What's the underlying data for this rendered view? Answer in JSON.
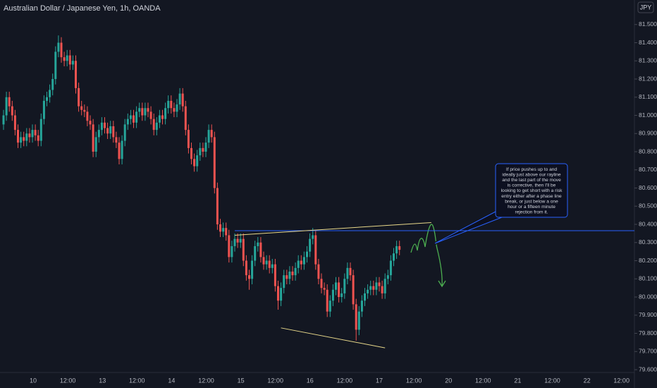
{
  "chart_data": {
    "type": "candlestick",
    "title": "Australian Dollar / Japanese Yen, 1h, OANDA",
    "currency": "JPY",
    "up_color": "#26a69a",
    "down_color": "#ef5350",
    "grid": false,
    "ylim": [
      79.538,
      81.635
    ],
    "yticks": [
      {
        "value": 79.6,
        "label": "79.600"
      },
      {
        "value": 79.7,
        "label": "79.700"
      },
      {
        "value": 79.8,
        "label": "79.800"
      },
      {
        "value": 79.9,
        "label": "79.900"
      },
      {
        "value": 80.0,
        "label": "80.000"
      },
      {
        "value": 80.1,
        "label": "80.100"
      },
      {
        "value": 80.2,
        "label": "80.200"
      },
      {
        "value": 80.3,
        "label": "80.300"
      },
      {
        "value": 80.4,
        "label": "80.400"
      },
      {
        "value": 80.5,
        "label": "80.500"
      },
      {
        "value": 80.6,
        "label": "80.600"
      },
      {
        "value": 80.7,
        "label": "80.700"
      },
      {
        "value": 80.8,
        "label": "80.800"
      },
      {
        "value": 80.9,
        "label": "80.900"
      },
      {
        "value": 81.0,
        "label": "81.000"
      },
      {
        "value": 81.1,
        "label": "81.100"
      },
      {
        "value": 81.2,
        "label": "81.200"
      },
      {
        "value": 81.3,
        "label": "81.300"
      },
      {
        "value": 81.4,
        "label": "81.400"
      },
      {
        "value": 81.5,
        "label": "81.500"
      }
    ],
    "x_labels": [
      "10",
      "12:00",
      "13",
      "12:00",
      "14",
      "12:00",
      "15",
      "12:00",
      "16",
      "12:00",
      "17",
      "12:00",
      "20",
      "12:00",
      "21",
      "12:00",
      "22",
      "12:00"
    ],
    "open": [
      80.95,
      81.0,
      81.1,
      81.05,
      81.0,
      80.92,
      80.85,
      80.88,
      80.86,
      80.9,
      80.88,
      80.92,
      80.89,
      80.86,
      80.98,
      81.08,
      81.1,
      81.14,
      81.2,
      81.35,
      81.4,
      81.32,
      81.3,
      81.33,
      81.28,
      81.3,
      81.15,
      81.05,
      81.03,
      81.02,
      80.97,
      80.95,
      80.8,
      80.88,
      80.92,
      80.96,
      80.93,
      80.9,
      80.94,
      80.88,
      80.85,
      80.76,
      80.86,
      80.95,
      80.98,
      81.0,
      80.96,
      81.02,
      81.04,
      81.0,
      81.04,
      81.02,
      80.98,
      80.92,
      80.96,
      81.0,
      80.98,
      81.04,
      81.08,
      81.04,
      81.02,
      81.06,
      81.12,
      81.05,
      80.92,
      80.82,
      80.76,
      80.72,
      80.78,
      80.82,
      80.8,
      80.85,
      80.92,
      80.88,
      80.6,
      80.4,
      80.36,
      80.38,
      80.34,
      80.22,
      80.28,
      80.32,
      80.3,
      80.32,
      80.2,
      80.12,
      80.1,
      80.2,
      80.28,
      80.3,
      80.22,
      80.18,
      80.2,
      80.16,
      80.18,
      80.06,
      79.98,
      80.05,
      80.12,
      80.1,
      80.14,
      80.12,
      80.16,
      80.2,
      80.18,
      80.22,
      80.25,
      80.32,
      80.34,
      80.18,
      80.1,
      80.05,
      80.04,
      79.92,
      79.98,
      80.04,
      80.08,
      80.0,
      80.02,
      80.1,
      80.16,
      80.12,
      79.96,
      79.82,
      79.92,
      79.98,
      80.02,
      80.04,
      80.06,
      80.04,
      80.08,
      80.06,
      80.02,
      80.1,
      80.12,
      80.2,
      80.24,
      80.28
    ],
    "high": [
      81.03,
      81.13,
      81.13,
      81.08,
      81.03,
      80.95,
      80.91,
      80.91,
      80.93,
      80.93,
      80.95,
      80.95,
      80.92,
      81.01,
      81.11,
      81.13,
      81.17,
      81.23,
      81.38,
      81.44,
      81.43,
      81.35,
      81.36,
      81.36,
      81.33,
      81.33,
      81.18,
      81.08,
      81.06,
      81.05,
      81.0,
      80.98,
      80.91,
      80.95,
      80.99,
      80.99,
      80.96,
      80.97,
      80.97,
      80.91,
      80.88,
      80.89,
      80.98,
      81.01,
      81.03,
      81.03,
      81.05,
      81.07,
      81.07,
      81.07,
      81.07,
      81.05,
      81.01,
      80.99,
      81.03,
      81.03,
      81.07,
      81.11,
      81.11,
      81.07,
      81.09,
      81.15,
      81.15,
      81.08,
      80.95,
      80.85,
      80.79,
      80.81,
      80.85,
      80.85,
      80.88,
      80.95,
      80.95,
      80.91,
      80.63,
      80.43,
      80.41,
      80.41,
      80.37,
      80.31,
      80.35,
      80.35,
      80.35,
      80.35,
      80.23,
      80.15,
      80.23,
      80.31,
      80.33,
      80.33,
      80.25,
      80.23,
      80.23,
      80.21,
      80.21,
      80.09,
      80.08,
      80.15,
      80.15,
      80.17,
      80.17,
      80.19,
      80.23,
      80.23,
      80.25,
      80.28,
      80.35,
      80.38,
      80.37,
      80.21,
      80.13,
      80.08,
      80.07,
      80.01,
      80.07,
      80.11,
      80.11,
      80.05,
      80.13,
      80.19,
      80.19,
      80.15,
      79.99,
      79.95,
      80.01,
      80.05,
      80.07,
      80.09,
      80.09,
      80.11,
      80.11,
      80.09,
      80.13,
      80.15,
      80.23,
      80.27,
      80.31,
      80.31
    ],
    "low": [
      80.92,
      80.97,
      81.02,
      80.97,
      80.89,
      80.82,
      80.82,
      80.83,
      80.83,
      80.85,
      80.85,
      80.86,
      80.83,
      80.83,
      80.95,
      81.05,
      81.07,
      81.11,
      81.17,
      81.32,
      81.29,
      81.27,
      81.27,
      81.25,
      81.25,
      81.12,
      81.02,
      81.0,
      80.99,
      80.94,
      80.92,
      80.77,
      80.77,
      80.85,
      80.89,
      80.9,
      80.87,
      80.87,
      80.85,
      80.82,
      80.73,
      80.73,
      80.83,
      80.92,
      80.95,
      80.93,
      80.93,
      80.99,
      80.97,
      80.97,
      80.99,
      80.95,
      80.89,
      80.89,
      80.93,
      80.95,
      80.95,
      81.01,
      81.01,
      80.99,
      80.99,
      81.03,
      81.02,
      80.89,
      80.79,
      80.73,
      80.69,
      80.69,
      80.75,
      80.77,
      80.77,
      80.82,
      80.85,
      80.57,
      80.37,
      80.33,
      80.33,
      80.31,
      80.19,
      80.19,
      80.25,
      80.27,
      80.27,
      80.17,
      80.09,
      80.04,
      80.07,
      80.17,
      80.25,
      80.19,
      80.15,
      80.15,
      80.13,
      80.13,
      80.03,
      79.93,
      79.95,
      80.02,
      80.07,
      80.07,
      80.09,
      80.09,
      80.13,
      80.15,
      80.15,
      80.19,
      80.22,
      80.29,
      80.15,
      80.07,
      80.02,
      80.01,
      79.89,
      79.89,
      79.95,
      80.01,
      79.97,
      79.97,
      79.99,
      80.07,
      80.09,
      79.93,
      79.76,
      79.79,
      79.89,
      79.95,
      79.99,
      80.01,
      80.01,
      80.01,
      80.03,
      79.99,
      79.99,
      80.07,
      80.09,
      80.17,
      80.21,
      80.23
    ],
    "close": [
      81.0,
      81.1,
      81.05,
      81.0,
      80.92,
      80.85,
      80.88,
      80.86,
      80.9,
      80.88,
      80.92,
      80.89,
      80.86,
      80.98,
      81.08,
      81.1,
      81.14,
      81.2,
      81.35,
      81.4,
      81.32,
      81.3,
      81.33,
      81.28,
      81.3,
      81.15,
      81.05,
      81.03,
      81.02,
      80.97,
      80.95,
      80.8,
      80.88,
      80.92,
      80.96,
      80.93,
      80.9,
      80.94,
      80.88,
      80.85,
      80.76,
      80.86,
      80.95,
      80.98,
      81.0,
      80.96,
      81.02,
      81.04,
      81.0,
      81.04,
      81.02,
      80.98,
      80.92,
      80.96,
      81.0,
      80.98,
      81.04,
      81.08,
      81.04,
      81.02,
      81.06,
      81.12,
      81.05,
      80.92,
      80.82,
      80.76,
      80.72,
      80.78,
      80.82,
      80.8,
      80.85,
      80.92,
      80.88,
      80.6,
      80.4,
      80.36,
      80.38,
      80.34,
      80.22,
      80.28,
      80.32,
      80.3,
      80.32,
      80.2,
      80.12,
      80.1,
      80.2,
      80.28,
      80.3,
      80.22,
      80.18,
      80.2,
      80.16,
      80.18,
      80.06,
      79.98,
      80.05,
      80.12,
      80.1,
      80.14,
      80.12,
      80.16,
      80.2,
      80.18,
      80.22,
      80.25,
      80.32,
      80.34,
      80.18,
      80.1,
      80.05,
      80.04,
      79.92,
      79.98,
      80.04,
      80.08,
      80.0,
      80.02,
      80.1,
      80.16,
      80.12,
      79.96,
      79.82,
      79.92,
      79.98,
      80.02,
      80.04,
      80.06,
      80.04,
      80.08,
      80.06,
      80.02,
      80.1,
      80.12,
      80.2,
      80.24,
      80.28,
      80.26
    ],
    "rayline": {
      "price": 80.365,
      "color": "#2962ff"
    },
    "trendlines": {
      "color": "#e8d88a",
      "lines": [
        [
          {
            "i": 80,
            "price": 80.34
          },
          {
            "i": 148,
            "price": 80.41
          }
        ],
        [
          {
            "i": 96,
            "price": 79.83
          },
          {
            "i": 132,
            "price": 79.72
          }
        ]
      ]
    },
    "note": [
      "If price pushes up to and",
      "ideally just above our rayline",
      "and the last part of the move",
      "is corrective, then I'll be",
      "looking to get short with a risk",
      "entry either after a phase line",
      "break, or just below a one",
      "hour or a fifteen minute",
      "rejection from it."
    ]
  }
}
